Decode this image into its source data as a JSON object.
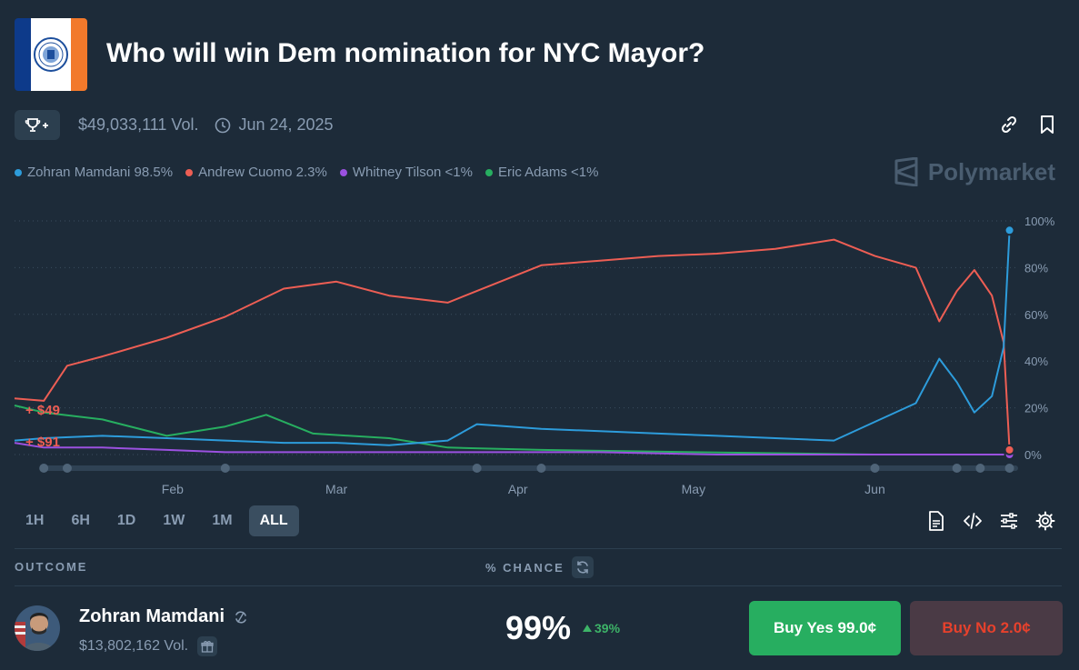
{
  "market": {
    "title": "Who will win Dem nomination for NYC Mayor?",
    "volume": "$49,033,111 Vol.",
    "end_date": "Jun 24, 2025"
  },
  "icons": {
    "trophy": "trophy-plus-icon",
    "clock": "clock-icon",
    "link": "link-icon",
    "bookmark": "bookmark-icon",
    "document": "document-icon",
    "embed": "code-icon",
    "sliders": "sliders-icon",
    "settings": "gear-icon"
  },
  "legend": [
    {
      "label": "Zohran Mamdani 98.5%",
      "color": "#2d9cdb"
    },
    {
      "label": "Andrew Cuomo 2.3%",
      "color": "#ed5e54"
    },
    {
      "label": "Whitney Tilson <1%",
      "color": "#9b51e0"
    },
    {
      "label": "Eric Adams <1%",
      "color": "#27ae60"
    }
  ],
  "brand": "Polymarket",
  "chart_data": {
    "type": "line",
    "ylim": [
      0,
      100
    ],
    "y_ticks": [
      "100%",
      "80%",
      "60%",
      "40%",
      "20%",
      "0%"
    ],
    "x_ticks": [
      "Feb",
      "Mar",
      "Apr",
      "May",
      "Jun"
    ],
    "x_range": [
      "2025-01-05",
      "2025-06-25"
    ],
    "annotations": [
      "+ $49",
      "+ $91"
    ],
    "series": [
      {
        "name": "Zohran Mamdani",
        "color": "#2d9cdb",
        "points": [
          [
            "2025-01-05",
            6
          ],
          [
            "2025-01-10",
            7
          ],
          [
            "2025-01-20",
            8
          ],
          [
            "2025-01-31",
            7
          ],
          [
            "2025-02-10",
            6
          ],
          [
            "2025-02-20",
            5
          ],
          [
            "2025-03-01",
            5
          ],
          [
            "2025-03-10",
            4
          ],
          [
            "2025-03-20",
            6
          ],
          [
            "2025-03-25",
            13
          ],
          [
            "2025-04-05",
            11
          ],
          [
            "2025-04-15",
            10
          ],
          [
            "2025-04-25",
            9
          ],
          [
            "2025-05-05",
            8
          ],
          [
            "2025-05-15",
            7
          ],
          [
            "2025-05-25",
            6
          ],
          [
            "2025-06-01",
            14
          ],
          [
            "2025-06-08",
            22
          ],
          [
            "2025-06-12",
            41
          ],
          [
            "2025-06-15",
            31
          ],
          [
            "2025-06-18",
            18
          ],
          [
            "2025-06-21",
            25
          ],
          [
            "2025-06-23",
            46
          ],
          [
            "2025-06-24",
            96
          ]
        ]
      },
      {
        "name": "Andrew Cuomo",
        "color": "#ed5e54",
        "points": [
          [
            "2025-01-05",
            24
          ],
          [
            "2025-01-10",
            23
          ],
          [
            "2025-01-14",
            38
          ],
          [
            "2025-01-20",
            42
          ],
          [
            "2025-01-31",
            50
          ],
          [
            "2025-02-10",
            59
          ],
          [
            "2025-02-20",
            71
          ],
          [
            "2025-03-01",
            74
          ],
          [
            "2025-03-10",
            68
          ],
          [
            "2025-03-20",
            65
          ],
          [
            "2025-03-25",
            70
          ],
          [
            "2025-04-05",
            81
          ],
          [
            "2025-04-15",
            83
          ],
          [
            "2025-04-25",
            85
          ],
          [
            "2025-05-05",
            86
          ],
          [
            "2025-05-15",
            88
          ],
          [
            "2025-05-25",
            92
          ],
          [
            "2025-06-01",
            85
          ],
          [
            "2025-06-08",
            80
          ],
          [
            "2025-06-12",
            57
          ],
          [
            "2025-06-15",
            70
          ],
          [
            "2025-06-18",
            79
          ],
          [
            "2025-06-21",
            68
          ],
          [
            "2025-06-23",
            48
          ],
          [
            "2025-06-24",
            2
          ]
        ]
      },
      {
        "name": "Whitney Tilson",
        "color": "#9b51e0",
        "points": [
          [
            "2025-01-05",
            5
          ],
          [
            "2025-01-10",
            3
          ],
          [
            "2025-01-20",
            3
          ],
          [
            "2025-01-31",
            2
          ],
          [
            "2025-02-10",
            1
          ],
          [
            "2025-03-01",
            1
          ],
          [
            "2025-03-20",
            1
          ],
          [
            "2025-04-15",
            1
          ],
          [
            "2025-05-05",
            0
          ],
          [
            "2025-06-24",
            0
          ]
        ]
      },
      {
        "name": "Eric Adams",
        "color": "#27ae60",
        "points": [
          [
            "2025-01-05",
            21
          ],
          [
            "2025-01-10",
            18
          ],
          [
            "2025-01-20",
            15
          ],
          [
            "2025-01-31",
            8
          ],
          [
            "2025-02-10",
            12
          ],
          [
            "2025-02-17",
            17
          ],
          [
            "2025-02-25",
            9
          ],
          [
            "2025-03-10",
            7
          ],
          [
            "2025-03-20",
            3
          ],
          [
            "2025-04-05",
            2
          ],
          [
            "2025-05-01",
            1
          ],
          [
            "2025-06-01",
            0
          ],
          [
            "2025-06-24",
            0
          ]
        ]
      }
    ]
  },
  "ranges": [
    {
      "label": "1H",
      "active": false
    },
    {
      "label": "6H",
      "active": false
    },
    {
      "label": "1D",
      "active": false
    },
    {
      "label": "1W",
      "active": false
    },
    {
      "label": "1M",
      "active": false
    },
    {
      "label": "ALL",
      "active": true
    }
  ],
  "table": {
    "col_outcome": "OUTCOME",
    "col_chance": "% CHANCE"
  },
  "outcome": {
    "name": "Zohran Mamdani",
    "volume": "$13,802,162 Vol.",
    "chance": "99%",
    "delta": "39%",
    "buy_yes": "Buy Yes 99.0¢",
    "buy_no": "Buy No 2.0¢"
  }
}
